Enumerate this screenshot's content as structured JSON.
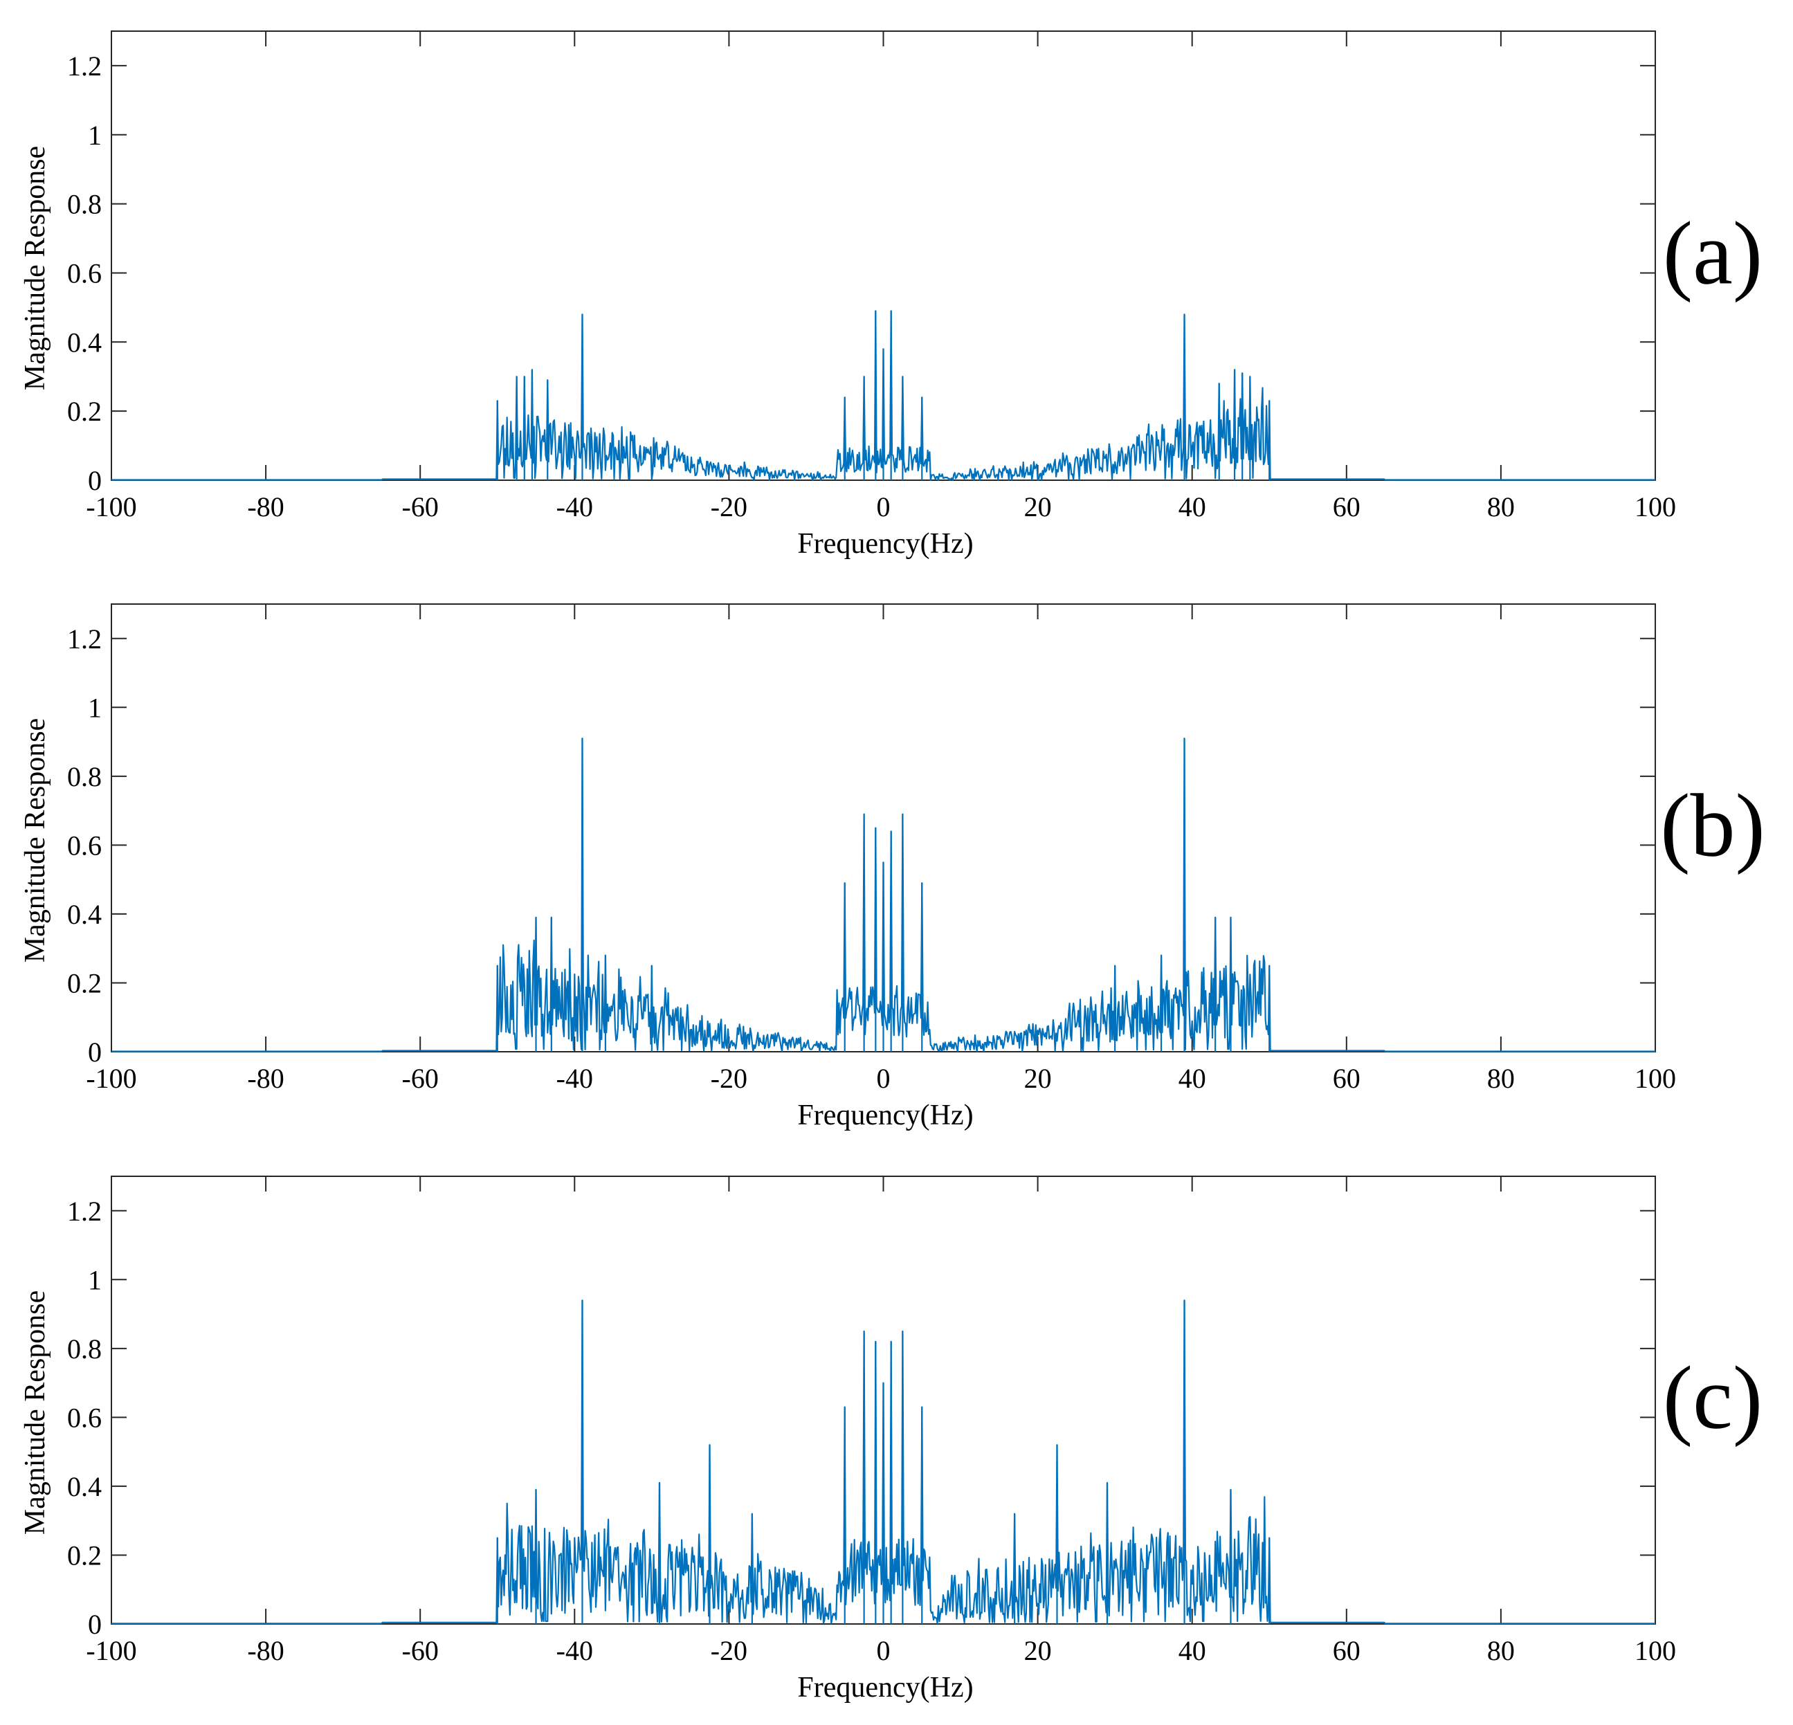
{
  "chart_data": [
    {
      "type": "line",
      "panel_label": "(a)",
      "title": "",
      "xlabel": "Frequency(Hz)",
      "ylabel": "Magnitude Response",
      "xlim": [
        -100,
        100
      ],
      "ylim": [
        0,
        1.3
      ],
      "xticks": [
        -100,
        -80,
        -60,
        -40,
        -20,
        0,
        20,
        40,
        60,
        80,
        100
      ],
      "xtick_labels": [
        "-100",
        "-80",
        "-60",
        "-40",
        "-20",
        "0",
        "20",
        "40",
        "60",
        "80",
        "100"
      ],
      "yticks": [
        0,
        0.2,
        0.4,
        0.6,
        0.8,
        1,
        1.2
      ],
      "ytick_labels": [
        "0",
        "0.2",
        "0.4",
        "0.6",
        "0.8",
        "1",
        "1.2"
      ],
      "color": "#0072BD",
      "spectrum": {
        "band_edge_hz": 50,
        "edge_level": 0.13,
        "inner_level": 0.03,
        "inner_edge_hz": 22,
        "noise": 0.55,
        "center_half_width_hz": 6,
        "center_floor": 0.06,
        "floor": 0.002,
        "seed": 11
      },
      "peaks": [
        {
          "x": -50,
          "y": 0.23
        },
        {
          "x": -47.5,
          "y": 0.3
        },
        {
          "x": -46.5,
          "y": 0.3
        },
        {
          "x": -45.5,
          "y": 0.32
        },
        {
          "x": -43.5,
          "y": 0.29
        },
        {
          "x": -39,
          "y": 0.48
        },
        {
          "x": -5,
          "y": 0.24
        },
        {
          "x": -2.5,
          "y": 0.3
        },
        {
          "x": -1,
          "y": 0.49
        },
        {
          "x": 0,
          "y": 0.38
        },
        {
          "x": 1,
          "y": 0.49
        },
        {
          "x": 2.5,
          "y": 0.3
        },
        {
          "x": 5,
          "y": 0.24
        },
        {
          "x": 39,
          "y": 0.48
        },
        {
          "x": 43.5,
          "y": 0.28
        },
        {
          "x": 45.5,
          "y": 0.32
        },
        {
          "x": 46.5,
          "y": 0.31
        },
        {
          "x": 47.5,
          "y": 0.3
        },
        {
          "x": 50,
          "y": 0.23
        }
      ]
    },
    {
      "type": "line",
      "panel_label": "(b)",
      "title": "",
      "xlabel": "Frequency(Hz)",
      "ylabel": "Magnitude Response",
      "xlim": [
        -100,
        100
      ],
      "ylim": [
        0,
        1.3
      ],
      "xticks": [
        -100,
        -80,
        -60,
        -40,
        -20,
        0,
        20,
        40,
        60,
        80,
        100
      ],
      "xtick_labels": [
        "-100",
        "-80",
        "-60",
        "-40",
        "-20",
        "0",
        "20",
        "40",
        "60",
        "80",
        "100"
      ],
      "yticks": [
        0,
        0.2,
        0.4,
        0.6,
        0.8,
        1,
        1.2
      ],
      "ytick_labels": [
        "0",
        "0.2",
        "0.4",
        "0.6",
        "0.8",
        "1",
        "1.2"
      ],
      "color": "#0072BD",
      "spectrum": {
        "band_edge_hz": 50,
        "edge_level": 0.17,
        "inner_level": 0.04,
        "inner_edge_hz": 20,
        "noise": 0.6,
        "center_half_width_hz": 6,
        "center_floor": 0.12,
        "floor": 0.002,
        "seed": 23
      },
      "peaks": [
        {
          "x": -50,
          "y": 0.25
        },
        {
          "x": -45,
          "y": 0.39
        },
        {
          "x": -43,
          "y": 0.39
        },
        {
          "x": -39,
          "y": 0.91
        },
        {
          "x": -36,
          "y": 0.28
        },
        {
          "x": -30,
          "y": 0.25
        },
        {
          "x": -5,
          "y": 0.49
        },
        {
          "x": -2.5,
          "y": 0.69
        },
        {
          "x": -1,
          "y": 0.65
        },
        {
          "x": 0,
          "y": 0.55
        },
        {
          "x": 1,
          "y": 0.64
        },
        {
          "x": 2.5,
          "y": 0.69
        },
        {
          "x": 5,
          "y": 0.49
        },
        {
          "x": 30,
          "y": 0.25
        },
        {
          "x": 36,
          "y": 0.28
        },
        {
          "x": 39,
          "y": 0.91
        },
        {
          "x": 43,
          "y": 0.39
        },
        {
          "x": 45,
          "y": 0.39
        },
        {
          "x": 50,
          "y": 0.25
        }
      ]
    },
    {
      "type": "line",
      "panel_label": "(c)",
      "title": "",
      "xlabel": "Frequency(Hz)",
      "ylabel": "Magnitude Response",
      "xlim": [
        -100,
        100
      ],
      "ylim": [
        0,
        1.3
      ],
      "xticks": [
        -100,
        -80,
        -60,
        -40,
        -20,
        0,
        20,
        40,
        60,
        80,
        100
      ],
      "xtick_labels": [
        "-100",
        "-80",
        "-60",
        "-40",
        "-20",
        "0",
        "20",
        "40",
        "60",
        "80",
        "100"
      ],
      "yticks": [
        0,
        0.2,
        0.4,
        0.6,
        0.8,
        1,
        1.2
      ],
      "ytick_labels": [
        "0",
        "0.2",
        "0.4",
        "0.6",
        "0.8",
        "1",
        "1.2"
      ],
      "color": "#0072BD",
      "spectrum": {
        "band_edge_hz": 50,
        "edge_level": 0.17,
        "inner_level": 0.08,
        "inner_edge_hz": 10,
        "noise": 0.65,
        "center_half_width_hz": 6,
        "center_floor": 0.15,
        "floor": 0.003,
        "seed": 37
      },
      "peaks": [
        {
          "x": -50,
          "y": 0.25
        },
        {
          "x": -45,
          "y": 0.39
        },
        {
          "x": -39,
          "y": 0.94
        },
        {
          "x": -29,
          "y": 0.41
        },
        {
          "x": -22.5,
          "y": 0.52
        },
        {
          "x": -17,
          "y": 0.32
        },
        {
          "x": -5,
          "y": 0.63
        },
        {
          "x": -2.5,
          "y": 0.85
        },
        {
          "x": -1,
          "y": 0.82
        },
        {
          "x": 0,
          "y": 0.7
        },
        {
          "x": 1,
          "y": 0.82
        },
        {
          "x": 2.5,
          "y": 0.85
        },
        {
          "x": 5,
          "y": 0.63
        },
        {
          "x": 17,
          "y": 0.32
        },
        {
          "x": 22.5,
          "y": 0.52
        },
        {
          "x": 29,
          "y": 0.41
        },
        {
          "x": 39,
          "y": 0.94
        },
        {
          "x": 45,
          "y": 0.39
        },
        {
          "x": 50,
          "y": 0.25
        }
      ]
    }
  ]
}
